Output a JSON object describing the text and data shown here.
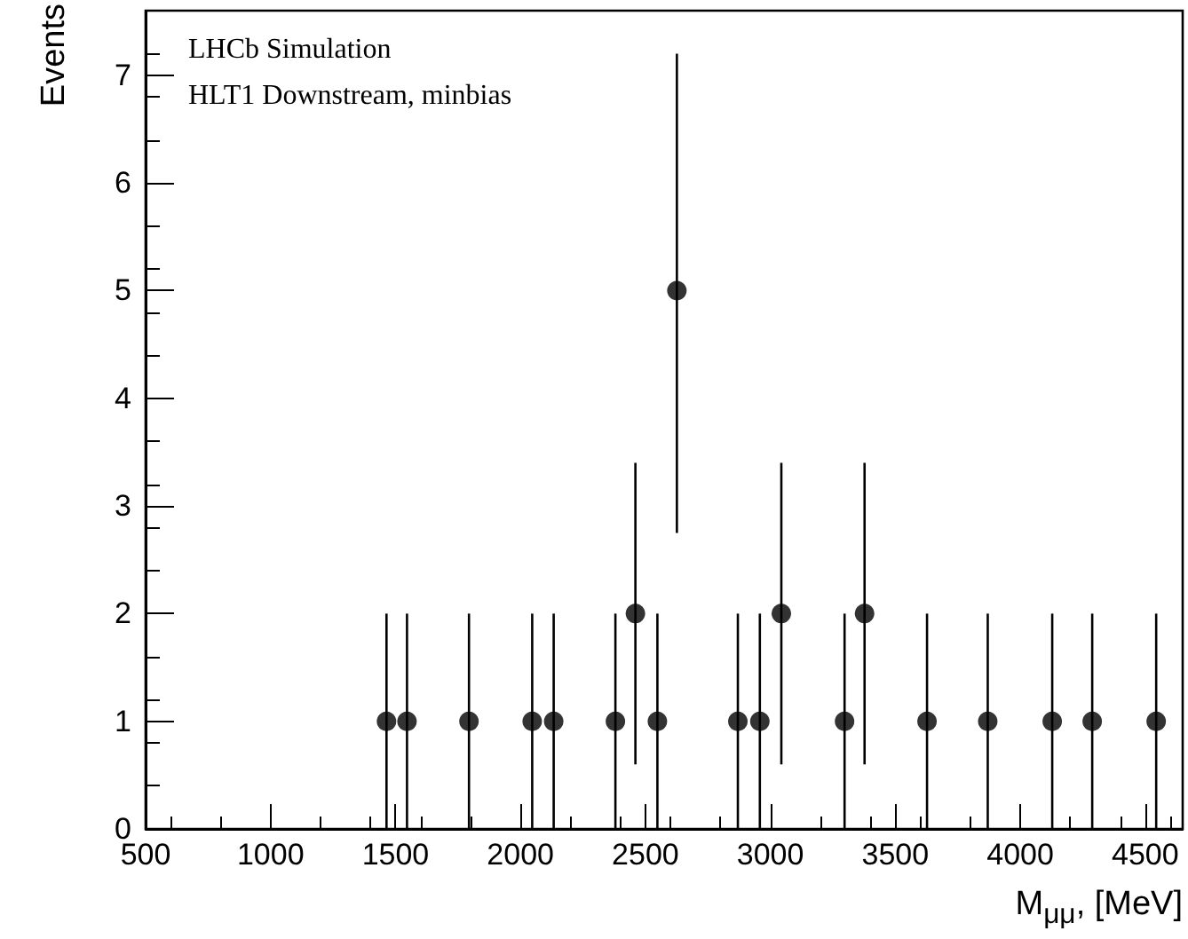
{
  "chart_data": {
    "type": "scatter",
    "xlabel": "M$_{μμ}$, [MeV]",
    "ylabel": "Events",
    "annotations": [
      "LHCb Simulation",
      "HLT1 Downstream, minbias"
    ],
    "x": [
      1464,
      1546,
      1794,
      2047,
      2133,
      2380,
      2460,
      2548,
      2626,
      2870,
      2958,
      3044,
      3297,
      3377,
      3627,
      3870,
      4128,
      4288,
      4544
    ],
    "series": [
      {
        "color": "#000000",
        "values": [
          1,
          1,
          1,
          1,
          1,
          1,
          2,
          1,
          5,
          1,
          1,
          2,
          1,
          2,
          1,
          1,
          1,
          1,
          1
        ],
        "errors": [
          [
            0,
            2
          ],
          [
            0,
            2
          ],
          [
            0,
            2
          ],
          [
            0,
            2
          ],
          [
            0,
            2
          ],
          [
            0,
            2
          ],
          [
            0.6,
            3.4
          ],
          [
            0,
            2
          ],
          [
            2.75,
            7.2
          ],
          [
            0,
            2
          ],
          [
            0,
            2
          ],
          [
            0.6,
            3.4
          ],
          [
            0,
            2
          ],
          [
            0.6,
            3.4
          ],
          [
            0,
            2
          ],
          [
            0,
            2
          ],
          [
            0,
            2
          ],
          [
            0,
            2
          ],
          [
            0,
            2
          ]
        ]
      }
    ],
    "xlim": [
      500,
      4650
    ],
    "xticks": [
      500,
      1000,
      1500,
      2000,
      2500,
      3000,
      3500,
      4000,
      4500
    ],
    "ylim": [
      0,
      7.6
    ],
    "yticks": [
      0,
      1,
      2,
      3,
      4,
      5,
      6,
      7
    ],
    "marker": "circle",
    "grid": false
  }
}
